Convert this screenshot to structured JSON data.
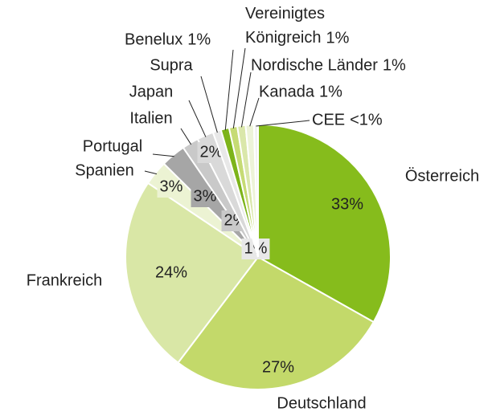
{
  "chart_data": {
    "type": "pie",
    "categories": [
      "Österreich",
      "Deutschland",
      "Frankreich",
      "Spanien",
      "Portugal",
      "Italien",
      "Japan",
      "Supra",
      "Benelux",
      "Vereinigtes Königreich",
      "Nordische Länder",
      "Kanada",
      "CEE"
    ],
    "values": [
      33,
      27,
      24,
      3,
      3,
      2,
      2,
      1,
      1,
      1,
      1,
      1,
      0.5
    ],
    "value_labels": [
      "33%",
      "27%",
      "24%",
      "3%",
      "3%",
      "2%",
      "2%",
      "1%",
      "1%",
      "1%",
      "1%",
      "1%",
      "<1%"
    ],
    "colors": [
      "#86bc1c",
      "#c3d96a",
      "#d9e7a6",
      "#ecf3d3",
      "#a6a6a6",
      "#c9c9c9",
      "#d9d9d9",
      "#e8e8e8",
      "#7db41a",
      "#c6db74",
      "#dae7aa",
      "#edf3d8",
      "#f2f2f2"
    ]
  }
}
